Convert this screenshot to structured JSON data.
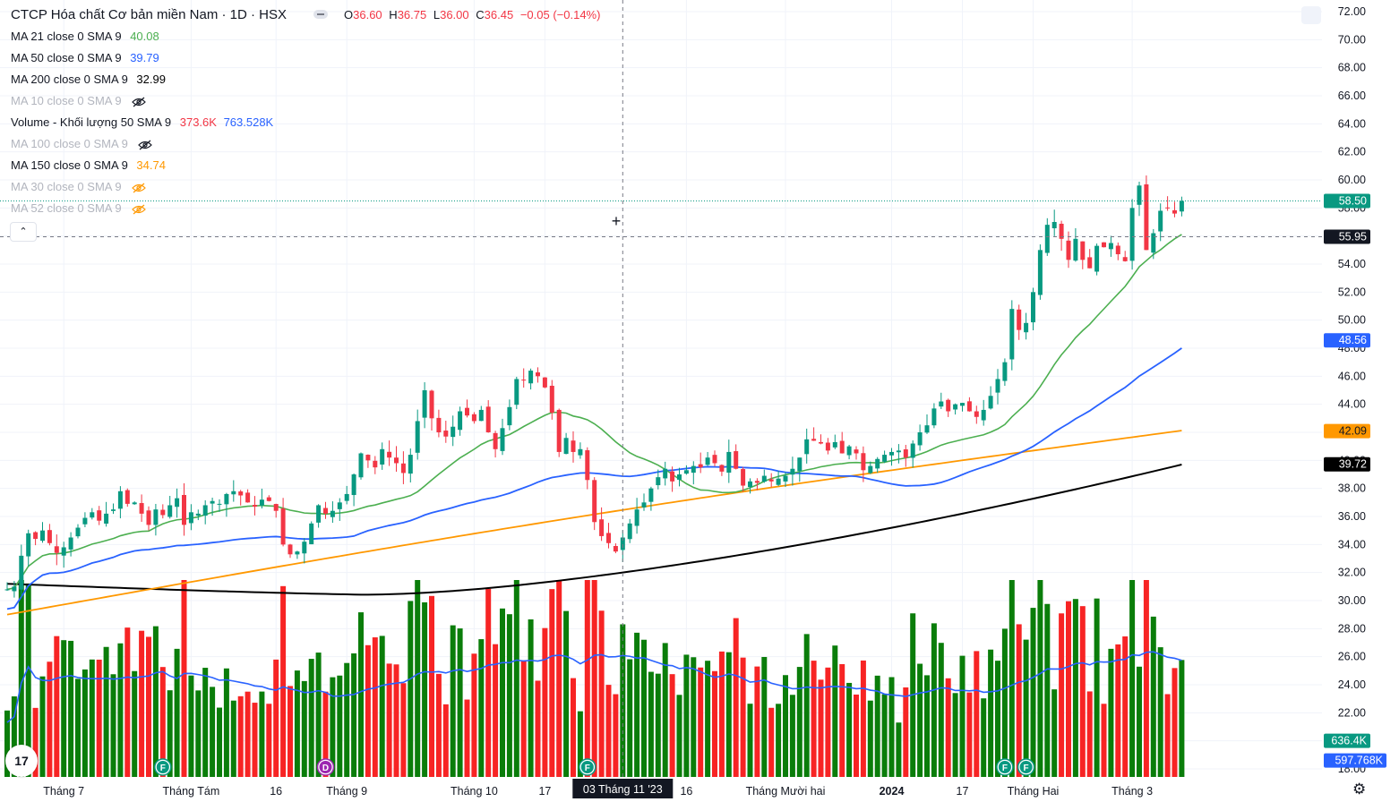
{
  "header": {
    "title": "CTCP Hóa chất Cơ bản miền Nam · 1D · HSX",
    "ohlc": {
      "open_label": "O",
      "open": "36.60",
      "high_label": "H",
      "high": "36.75",
      "low_label": "L",
      "low": "36.00",
      "close_label": "C",
      "close": "36.45",
      "change": "−0.05 (−0.14%)"
    }
  },
  "legend": [
    {
      "name": "MA 21 close 0 SMA 9",
      "value": "40.08",
      "color": "#4caf50",
      "hidden": false
    },
    {
      "name": "MA 50 close 0 SMA 9",
      "value": "39.79",
      "color": "#2962ff",
      "hidden": false
    },
    {
      "name": "MA 200 close 0 SMA 9",
      "value": "32.99",
      "color": "#000000",
      "hidden": false
    },
    {
      "name": "MA 10 close 0 SMA 9",
      "value": "",
      "color": "#b2b5be",
      "hidden": true,
      "icon": "eye-off-icon"
    },
    {
      "name": "Volume - Khối lượng 50 SMA 9",
      "value": "373.6K",
      "value2": "763.528K",
      "color": "#f23645",
      "color2": "#2962ff",
      "hidden": false
    },
    {
      "name": "MA 100 close 0 SMA 9",
      "value": "",
      "color": "#b2b5be",
      "hidden": true,
      "icon": "eye-off-icon"
    },
    {
      "name": "MA 150 close 0 SMA 9",
      "value": "34.74",
      "color": "#ff9800",
      "hidden": false
    },
    {
      "name": "MA 30 close 0 SMA 9",
      "value": "",
      "color": "#b2b5be",
      "hidden": true,
      "icon": "eye-off-icon-orange"
    },
    {
      "name": "MA 52 close 0 SMA 9",
      "value": "",
      "color": "#b2b5be",
      "hidden": true,
      "icon": "eye-off-icon-orange"
    }
  ],
  "collapse_label": "⌃",
  "logo_text": "17",
  "chart_data": {
    "type": "candlestick",
    "y_ticks": [
      "72.00",
      "70.00",
      "68.00",
      "66.00",
      "64.00",
      "62.00",
      "60.00",
      "58.00",
      "56.00",
      "54.00",
      "52.00",
      "50.00",
      "48.00",
      "46.00",
      "44.00",
      "42.00",
      "40.00",
      "38.00",
      "36.00",
      "34.00",
      "32.00",
      "30.00",
      "28.00",
      "26.00",
      "24.00",
      "22.00",
      "20.00",
      "18.00"
    ],
    "ylim": [
      17.5,
      72.5
    ],
    "x_labels": [
      {
        "label": "Tháng 7",
        "bar": 8
      },
      {
        "label": "Tháng Tám",
        "bar": 26
      },
      {
        "label": "16",
        "bar": 38
      },
      {
        "label": "Tháng 9",
        "bar": 48
      },
      {
        "label": "Tháng 10",
        "bar": 66
      },
      {
        "label": "17",
        "bar": 76
      },
      {
        "label": "16",
        "bar": 96
      },
      {
        "label": "Tháng Mười hai",
        "bar": 110
      },
      {
        "label": "2024",
        "bar": 125
      },
      {
        "label": "17",
        "bar": 135
      },
      {
        "label": "Tháng Hai",
        "bar": 145
      },
      {
        "label": "Tháng 3",
        "bar": 159
      }
    ],
    "crosshair_label": "03 Tháng 11 '23",
    "crosshair_bar": 87,
    "crosshair_price": 55.95,
    "price_badges": [
      {
        "value": "58.50",
        "price": 58.5,
        "bg": "#089981",
        "fg": "#ffffff",
        "kind": "last-price"
      },
      {
        "value": "55.95",
        "price": 55.95,
        "bg": "#131722",
        "fg": "#ffffff",
        "kind": "crosshair"
      },
      {
        "value": "48.56",
        "price": 48.56,
        "bg": "#2962ff",
        "fg": "#ffffff",
        "kind": "ma50"
      },
      {
        "value": "42.09",
        "price": 42.09,
        "bg": "#ff9800",
        "fg": "#131722",
        "kind": "ma150"
      },
      {
        "value": "39.72",
        "price": 39.72,
        "bg": "#000000",
        "fg": "#ffffff",
        "kind": "ma200"
      },
      {
        "value": "636.4K",
        "price": 20.0,
        "bg": "#089981",
        "fg": "#ffffff",
        "kind": "volume"
      },
      {
        "value": "597.768K",
        "price": 18.6,
        "bg": "#2962ff",
        "fg": "#ffffff",
        "kind": "volume-ma"
      }
    ],
    "events": [
      {
        "label": "F",
        "bar": 22,
        "color": "#089981"
      },
      {
        "label": "D",
        "bar": 45,
        "color": "#9c27b0"
      },
      {
        "label": "F",
        "bar": 82,
        "color": "#089981"
      },
      {
        "label": "F",
        "bar": 141,
        "color": "#089981"
      },
      {
        "label": "F",
        "bar": 144,
        "color": "#089981"
      }
    ],
    "series_colors": {
      "up": "#089981",
      "down": "#f23645",
      "vol_up": "#0a7d0a",
      "vol_down": "#f72424",
      "ma21": "#4caf50",
      "ma50": "#2962ff",
      "ma150": "#ff9800",
      "ma200": "#000000"
    },
    "closes": [
      30.8,
      31.0,
      33.2,
      34.8,
      34.4,
      35.0,
      34.1,
      33.4,
      33.8,
      34.5,
      35.2,
      35.9,
      36.3,
      35.7,
      36.2,
      36.5,
      37.8,
      36.9,
      37.0,
      36.2,
      35.4,
      36.5,
      36.1,
      36.8,
      37.3,
      35.4,
      36.3,
      36.2,
      36.8,
      37.1,
      36.9,
      37.6,
      37.8,
      37.5,
      37.0,
      36.7,
      37.2,
      37.1,
      36.4,
      34.0,
      33.3,
      33.5,
      34.2,
      35.5,
      36.8,
      36.2,
      36.4,
      37.0,
      37.6,
      39.0,
      40.5,
      40.0,
      39.5,
      40.8,
      40.2,
      39.8,
      39.1,
      40.4,
      42.8,
      45.0,
      43.0,
      42.0,
      41.7,
      42.4,
      43.5,
      43.2,
      42.8,
      43.6,
      42.0,
      40.8,
      42.3,
      43.8,
      45.8,
      45.7,
      46.4,
      46.0,
      45.2,
      43.4,
      40.6,
      41.6,
      40.6,
      40.8,
      38.6,
      35.6,
      34.6,
      34.1,
      33.5,
      34.5,
      35.5,
      36.5,
      37.0,
      38.0,
      38.8,
      39.4,
      38.5,
      39.0,
      39.3,
      39.6,
      39.5,
      40.2,
      39.8,
      39.2,
      40.6,
      39.4,
      38.2,
      38.5,
      38.4,
      38.9,
      38.5,
      38.7,
      38.9,
      39.4,
      40.2,
      41.5,
      41.4,
      41.2,
      40.7,
      41.3,
      40.5,
      41.0,
      40.5,
      39.3,
      39.6,
      40.1,
      40.4,
      40.6,
      40.7,
      40.2,
      41.2,
      42.0,
      42.5,
      43.7,
      44.2,
      43.5,
      44.0,
      44.1,
      43.5,
      43.1,
      43.6,
      44.6,
      45.8,
      47.0,
      50.8,
      49.3,
      49.8,
      52.0,
      55.0,
      56.8,
      57.0,
      55.8,
      54.3,
      55.8,
      54.3,
      53.7,
      55.3,
      55.2,
      55.5,
      54.7,
      54.2,
      58.0,
      59.6,
      55.0,
      56.2,
      57.8,
      58.0,
      57.6,
      58.5
    ]
  }
}
